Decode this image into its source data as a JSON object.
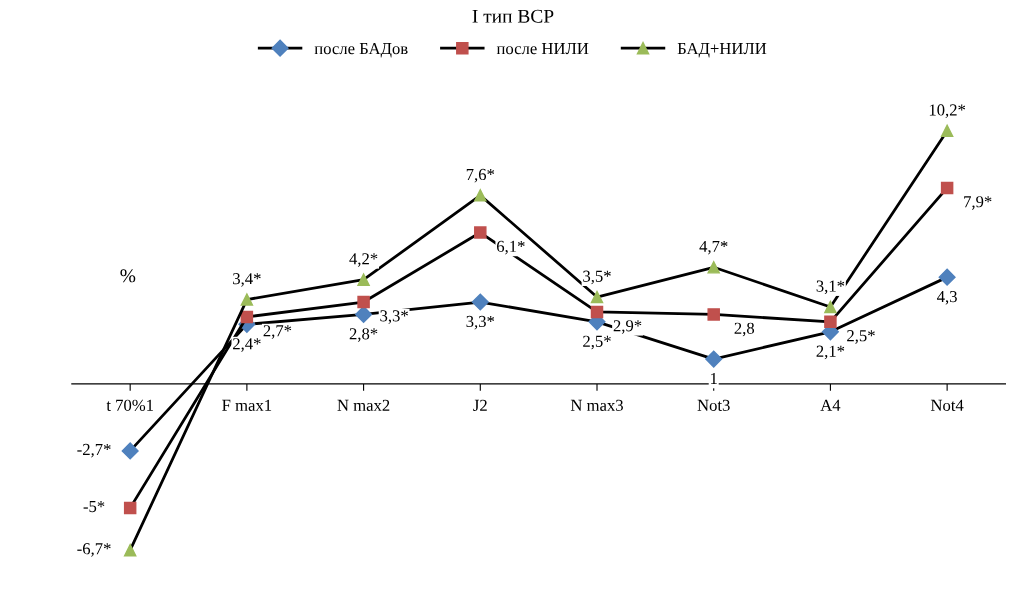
{
  "chart_data": {
    "type": "line",
    "title": "I тип ВСР",
    "ylabel": "%",
    "categories": [
      "t 70%1",
      "F max1",
      "N max2",
      "J2",
      "N max3",
      "Not3",
      "A4",
      "Not4"
    ],
    "series": [
      {
        "name": "после БАДов",
        "color": "#4f81bd",
        "marker": "diamond",
        "values": [
          -2.7,
          2.4,
          2.8,
          3.3,
          2.5,
          1,
          2.1,
          4.3
        ],
        "value_labels": [
          "-2,7*",
          "2,4*",
          "2,8*",
          "3,3*",
          "2,5*",
          "1",
          "2,1*",
          "4,3"
        ]
      },
      {
        "name": "после НИЛИ",
        "color": "#c0504d",
        "marker": "square",
        "values": [
          -5,
          2.7,
          3.3,
          6.1,
          2.9,
          2.8,
          2.5,
          7.9
        ],
        "value_labels": [
          "-5*",
          "2,7*",
          "3,3*",
          "6,1*",
          "2,9*",
          "2,8",
          "2,5*",
          "7,9*"
        ]
      },
      {
        "name": "БАД+НИЛИ",
        "color": "#9bbb59",
        "marker": "triangle",
        "values": [
          -6.7,
          3.4,
          4.2,
          7.6,
          3.5,
          4.7,
          3.1,
          10.2
        ],
        "value_labels": [
          "-6,7*",
          "3,4*",
          "4,2*",
          "7,6*",
          "3,5*",
          "4,7*",
          "3,1*",
          "10,2*"
        ]
      }
    ],
    "legend": "top",
    "grid": false,
    "tick_labels": "x",
    "line_style": "solid"
  }
}
